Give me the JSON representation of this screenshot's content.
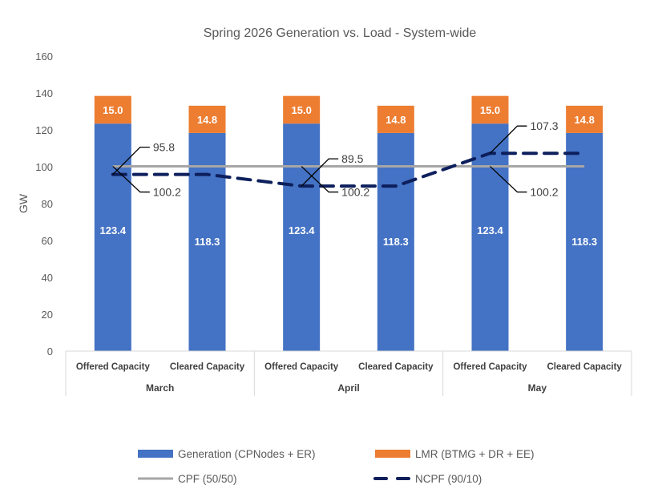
{
  "chart_data": {
    "type": "bar",
    "stacked": true,
    "title": "Spring 2026 Generation vs. Load - System-wide",
    "xlabel": "",
    "ylabel": "GW",
    "ylim": [
      0,
      160
    ],
    "yticks": [
      0,
      20,
      40,
      60,
      80,
      100,
      120,
      140,
      160
    ],
    "grid": false,
    "categories": [
      "Offered Capacity",
      "Cleared Capacity",
      "Offered Capacity",
      "Cleared Capacity",
      "Offered Capacity",
      "Cleared Capacity"
    ],
    "groups": [
      {
        "label": "March",
        "span": [
          0,
          1
        ]
      },
      {
        "label": "April",
        "span": [
          2,
          3
        ]
      },
      {
        "label": "May",
        "span": [
          4,
          5
        ]
      }
    ],
    "series": [
      {
        "name": "Generation (CPNodes + ER)",
        "kind": "bar",
        "color": "#4472C4",
        "values": [
          123.4,
          118.3,
          123.4,
          118.3,
          123.4,
          118.3
        ]
      },
      {
        "name": "LMR (BTMG + DR + EE)",
        "kind": "bar",
        "color": "#ED7D31",
        "values": [
          15.0,
          14.8,
          15.0,
          14.8,
          15.0,
          14.8
        ]
      },
      {
        "name": "CPF (50/50)",
        "kind": "line",
        "style": "solid",
        "color": "#A6A6A6",
        "values": [
          100.2,
          100.2,
          100.2,
          100.2,
          100.2,
          100.2
        ]
      },
      {
        "name": "NCPF (90/10)",
        "kind": "line",
        "style": "dashed",
        "color": "#0D1F5C",
        "values": [
          95.8,
          95.8,
          89.5,
          89.5,
          107.3,
          107.3
        ]
      }
    ],
    "annotations": [
      {
        "text": "95.8",
        "series": "NCPF (90/10)",
        "index": 0,
        "position": "upper-right"
      },
      {
        "text": "100.2",
        "series": "CPF (50/50)",
        "index": 0,
        "position": "lower-right"
      },
      {
        "text": "89.5",
        "series": "NCPF (90/10)",
        "index": 2,
        "position": "upper-right"
      },
      {
        "text": "100.2",
        "series": "CPF (50/50)",
        "index": 2,
        "position": "lower-right"
      },
      {
        "text": "107.3",
        "series": "NCPF (90/10)",
        "index": 4,
        "position": "upper-right"
      },
      {
        "text": "100.2",
        "series": "CPF (50/50)",
        "index": 4,
        "position": "lower-right"
      }
    ],
    "legend": {
      "placement": "bottom",
      "items": [
        {
          "label": "Generation (CPNodes + ER)",
          "kind": "bar",
          "color": "#4472C4"
        },
        {
          "label": "LMR (BTMG + DR + EE)",
          "kind": "bar",
          "color": "#ED7D31"
        },
        {
          "label": "CPF (50/50)",
          "kind": "line",
          "style": "solid",
          "color": "#A6A6A6"
        },
        {
          "label": "NCPF (90/10)",
          "kind": "line",
          "style": "dashed",
          "color": "#0D1F5C"
        }
      ]
    }
  }
}
